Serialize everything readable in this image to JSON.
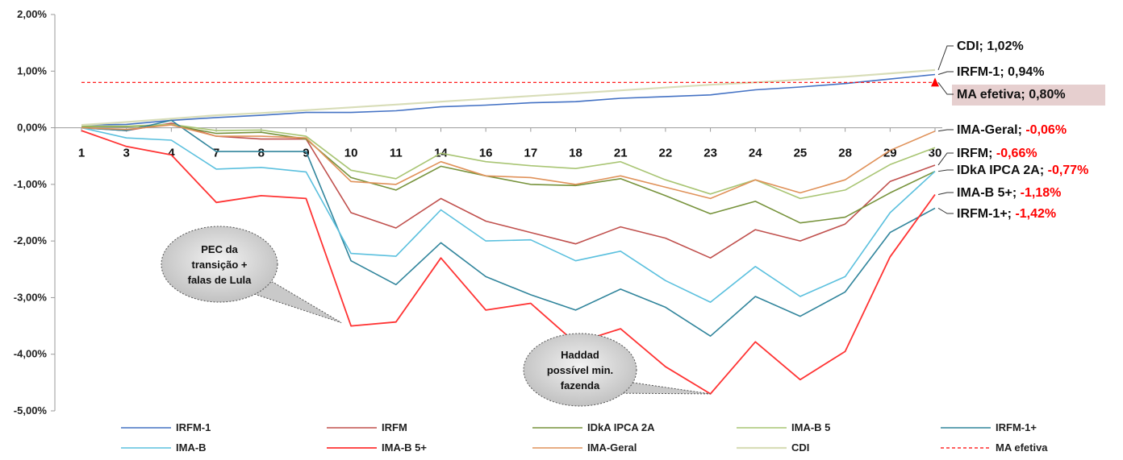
{
  "chart_data": {
    "type": "line",
    "categories": [
      "1",
      "3",
      "4",
      "7",
      "8",
      "9",
      "10",
      "11",
      "14",
      "16",
      "17",
      "18",
      "21",
      "22",
      "23",
      "24",
      "25",
      "28",
      "29",
      "30"
    ],
    "ylim": [
      -5,
      2
    ],
    "yticks": [
      "-5,00%",
      "-4,00%",
      "-3,00%",
      "-2,00%",
      "-1,00%",
      "0,00%",
      "1,00%",
      "2,00%"
    ],
    "grid": false,
    "legend": "bottom",
    "series": [
      {
        "name": "IRFM-1",
        "color": "#4472C4",
        "width": 1.6,
        "values": [
          0.05,
          0.06,
          0.13,
          0.18,
          0.22,
          0.27,
          0.27,
          0.3,
          0.37,
          0.4,
          0.44,
          0.46,
          0.52,
          0.55,
          0.58,
          0.67,
          0.72,
          0.78,
          0.86,
          0.94
        ]
      },
      {
        "name": "IRFM",
        "color": "#C0504D",
        "width": 1.6,
        "values": [
          0.0,
          -0.05,
          0.08,
          -0.15,
          -0.2,
          -0.2,
          -1.5,
          -1.77,
          -1.25,
          -1.65,
          -1.85,
          -2.05,
          -1.75,
          -1.95,
          -2.3,
          -1.8,
          -2.0,
          -1.7,
          -0.95,
          -0.66
        ]
      },
      {
        "name": "IDkA IPCA 2A",
        "color": "#77933C",
        "width": 1.6,
        "values": [
          0.02,
          0.02,
          0.05,
          -0.1,
          -0.08,
          -0.2,
          -0.88,
          -1.1,
          -0.68,
          -0.85,
          -1.0,
          -1.02,
          -0.9,
          -1.2,
          -1.52,
          -1.3,
          -1.68,
          -1.58,
          -1.15,
          -0.77
        ]
      },
      {
        "name": "IMA-B 5",
        "color": "#A9C574",
        "width": 1.6,
        "values": [
          0.03,
          0.03,
          0.06,
          -0.05,
          -0.04,
          -0.15,
          -0.75,
          -0.9,
          -0.45,
          -0.6,
          -0.67,
          -0.72,
          -0.6,
          -0.92,
          -1.17,
          -0.92,
          -1.25,
          -1.1,
          -0.65,
          -0.35
        ]
      },
      {
        "name": "IRFM-1+",
        "color": "#31859C",
        "width": 1.6,
        "values": [
          0.0,
          -0.05,
          0.13,
          -0.42,
          -0.42,
          -0.42,
          -2.35,
          -2.77,
          -2.03,
          -2.63,
          -2.95,
          -3.22,
          -2.85,
          -3.17,
          -3.68,
          -2.98,
          -3.33,
          -2.9,
          -1.85,
          -1.42
        ]
      },
      {
        "name": "IMA-B",
        "color": "#5BC0DE",
        "width": 1.6,
        "values": [
          0.0,
          -0.18,
          -0.22,
          -0.73,
          -0.7,
          -0.78,
          -2.22,
          -2.27,
          -1.45,
          -2.0,
          -1.98,
          -2.35,
          -2.18,
          -2.7,
          -3.08,
          -2.45,
          -2.98,
          -2.63,
          -1.5,
          -0.77
        ]
      },
      {
        "name": "IMA-B 5+",
        "color": "#FF3333",
        "width": 1.8,
        "values": [
          -0.05,
          -0.33,
          -0.48,
          -1.32,
          -1.2,
          -1.25,
          -3.5,
          -3.43,
          -2.3,
          -3.22,
          -3.1,
          -3.8,
          -3.55,
          -4.22,
          -4.7,
          -3.78,
          -4.45,
          -3.95,
          -2.28,
          -1.18
        ]
      },
      {
        "name": "IMA-Geral",
        "color": "#E0925A",
        "width": 1.6,
        "values": [
          0.0,
          -0.03,
          0.05,
          -0.15,
          -0.15,
          -0.18,
          -0.95,
          -1.0,
          -0.6,
          -0.85,
          -0.88,
          -1.0,
          -0.85,
          -1.05,
          -1.25,
          -0.92,
          -1.15,
          -0.92,
          -0.4,
          -0.06
        ]
      },
      {
        "name": "CDI",
        "color": "#D8DDB8",
        "width": 2.2,
        "values": [
          0.05,
          0.1,
          0.16,
          0.22,
          0.26,
          0.31,
          0.36,
          0.41,
          0.46,
          0.51,
          0.56,
          0.61,
          0.66,
          0.71,
          0.76,
          0.8,
          0.85,
          0.9,
          0.96,
          1.02
        ]
      },
      {
        "name": "MA efetiva",
        "color": "#FF0000",
        "width": 1.2,
        "dashed": true,
        "values": [
          0.8,
          0.8,
          0.8,
          0.8,
          0.8,
          0.8,
          0.8,
          0.8,
          0.8,
          0.8,
          0.8,
          0.8,
          0.8,
          0.8,
          0.8,
          0.8,
          0.8,
          0.8,
          0.8,
          0.8
        ]
      }
    ],
    "end_labels": [
      {
        "name": "CDI; ",
        "value": "1,02%",
        "value_color": "#111111",
        "series": "CDI",
        "highlight": false
      },
      {
        "name": "IRFM-1; ",
        "value": "0,94%",
        "value_color": "#111111",
        "series": "IRFM-1",
        "highlight": false
      },
      {
        "name": "MA efetiva; ",
        "value": "0,80%",
        "value_color": "#111111",
        "series": "MA efetiva",
        "highlight": true
      },
      {
        "name": "IMA-Geral; ",
        "value": "-0,06%",
        "value_color": "#FF0000",
        "series": "IMA-Geral",
        "highlight": false
      },
      {
        "name": "IRFM; ",
        "value": "-0,66%",
        "value_color": "#FF0000",
        "series": "IRFM",
        "highlight": false
      },
      {
        "name": "IDkA IPCA 2A; ",
        "value": "-0,77%",
        "value_color": "#FF0000",
        "series": "IDkA IPCA 2A",
        "highlight": false
      },
      {
        "name": "IMA-B 5+; ",
        "value": "-1,18%",
        "value_color": "#FF0000",
        "series": "IMA-B 5+",
        "highlight": false
      },
      {
        "name": "IRFM-1+; ",
        "value": "-1,42%",
        "value_color": "#FF0000",
        "series": "IRFM-1+",
        "highlight": false
      }
    ],
    "annotations": [
      {
        "lines": [
          "PEC da",
          "transição +",
          "falas de Lula"
        ],
        "points_to": {
          "category": "10",
          "value": -3.5
        }
      },
      {
        "lines": [
          "Haddad",
          "possível min.",
          "fazenda"
        ],
        "points_to": {
          "category": "23",
          "value": -4.7
        }
      }
    ]
  }
}
